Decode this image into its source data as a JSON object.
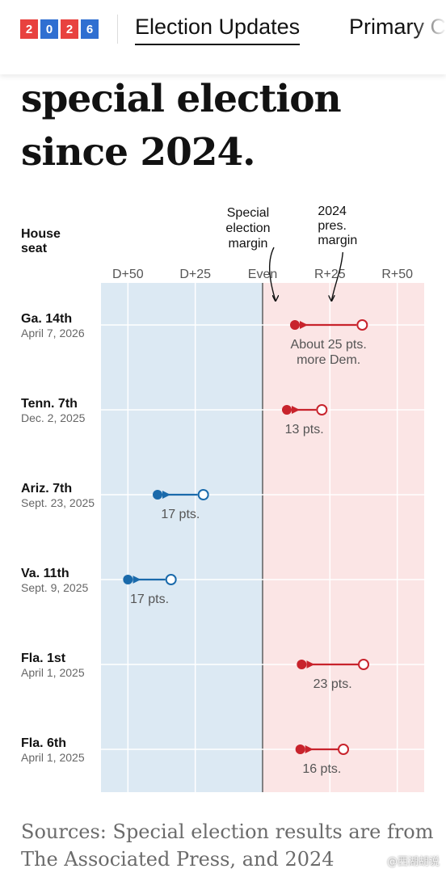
{
  "header": {
    "badge": [
      "2",
      "0",
      "2",
      "6"
    ],
    "badge_colors": [
      "#e8423f",
      "#2f6fd1",
      "#e8423f",
      "#2f6fd1"
    ],
    "tabs": [
      {
        "label": "Election Updates"
      },
      {
        "label": "Primary C"
      }
    ]
  },
  "headline": "special election since 2024.",
  "chart_data": {
    "type": "scatter",
    "column_header": "House seat",
    "axis_ticks": [
      "D+50",
      "D+25",
      "Even",
      "R+25",
      "R+50"
    ],
    "axis_tick_values": [
      -50,
      -25,
      0,
      25,
      50
    ],
    "xlim": [
      -60,
      60
    ],
    "annotations": {
      "special": "Special election margin",
      "pres": "2024 pres. margin"
    },
    "colors": {
      "dem": "#1a6aab",
      "rep": "#c8232c",
      "dem_bg": "#dce9f3",
      "rep_bg": "#fbe5e5"
    },
    "rows": [
      {
        "seat": "Ga. 14th",
        "date": "April 7, 2026",
        "special": 12,
        "pres": 37,
        "shift_label": "About 25 pts. more Dem."
      },
      {
        "seat": "Tenn. 7th",
        "date": "Dec. 2, 2025",
        "special": 9,
        "pres": 22,
        "shift_label": "13 pts."
      },
      {
        "seat": "Ariz. 7th",
        "date": "Sept. 23, 2025",
        "special": -39,
        "pres": -22,
        "shift_label": "17 pts."
      },
      {
        "seat": "Va. 11th",
        "date": "Sept. 9, 2025",
        "special": -50,
        "pres": -34,
        "shift_label": "17 pts."
      },
      {
        "seat": "Fla. 1st",
        "date": "April 1, 2025",
        "special": 14.5,
        "pres": 37.5,
        "shift_label": "23 pts."
      },
      {
        "seat": "Fla. 6th",
        "date": "April 1, 2025",
        "special": 14,
        "pres": 30,
        "shift_label": "16 pts."
      }
    ]
  },
  "sources": "Sources: Special election results are from The Associated Press, and 2024",
  "watermark": "@西湖胡说"
}
